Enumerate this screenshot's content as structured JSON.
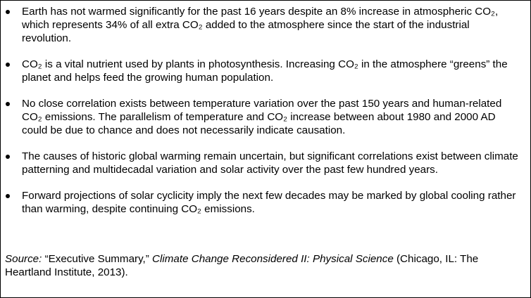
{
  "bullets": [
    "Earth has not warmed significantly for the past 16 years despite an 8% increase in atmospheric CO₂, which represents 34% of all extra CO₂ added to the atmosphere since the start of the industrial revolution.",
    "CO₂ is a vital nutrient used by plants in photosynthesis. Increasing CO₂ in the atmosphere “greens” the planet and helps feed the growing human population.",
    "No close correlation exists between temperature variation over the past 150 years and human-related CO₂ emissions. The parallelism of temperature and CO₂ increase between about 1980 and 2000 AD could be due to chance and does not necessarily indicate causation.",
    "The causes of historic global warming remain uncertain, but significant correlations exist between climate patterning and multidecadal variation and solar activity over the past few hundred years.",
    "Forward projections of solar cyclicity imply the next few decades may be marked by global cooling rather than warming, despite continuing CO₂ emissions."
  ],
  "source": {
    "label": "Source:",
    "quote": " “Executive Summary,” ",
    "book_title": "Climate Change Reconsidered II: Physical Science",
    "publication": " (Chicago, IL: The Heartland Institute, 2013)."
  }
}
